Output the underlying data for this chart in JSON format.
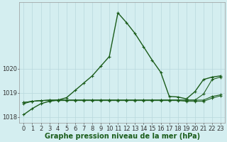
{
  "bg_color": "#d4eef0",
  "grid_color": "#b8d8dc",
  "line_color": "#1a5c1a",
  "marker_color": "#1a5c1a",
  "xlabel": "Graphe pression niveau de la mer (hPa)",
  "xlabel_fontsize": 7,
  "tick_fontsize": 6,
  "ytick_labels": [
    "1018",
    "1019",
    "1020"
  ],
  "ytick_values": [
    1018,
    1019,
    1020
  ],
  "xtick_values": [
    0,
    1,
    2,
    3,
    4,
    5,
    6,
    7,
    8,
    9,
    10,
    11,
    12,
    13,
    14,
    15,
    16,
    17,
    18,
    19,
    20,
    21,
    22,
    23
  ],
  "series": [
    [
      1018.1,
      1018.35,
      1018.55,
      1018.65,
      1018.7,
      1018.8,
      1019.1,
      1019.4,
      1019.7,
      1020.1,
      1020.5,
      1022.3,
      1021.9,
      1021.45,
      1020.9,
      1020.35,
      1019.85,
      1018.85,
      1018.83,
      1018.75,
      1019.05,
      1019.55,
      1019.65,
      1019.7
    ],
    [
      1018.55,
      1018.65,
      1018.68,
      1018.7,
      1018.7,
      1018.7,
      1018.7,
      1018.7,
      1018.7,
      1018.7,
      1018.7,
      1018.7,
      1018.7,
      1018.7,
      1018.7,
      1018.7,
      1018.7,
      1018.7,
      1018.7,
      1018.7,
      1018.7,
      1018.95,
      1019.55,
      1019.65
    ],
    [
      1018.6,
      1018.65,
      1018.68,
      1018.7,
      1018.7,
      1018.7,
      1018.7,
      1018.7,
      1018.7,
      1018.7,
      1018.7,
      1018.7,
      1018.7,
      1018.7,
      1018.7,
      1018.7,
      1018.7,
      1018.7,
      1018.7,
      1018.7,
      1018.7,
      1018.7,
      1018.85,
      1018.92
    ],
    [
      1018.6,
      1018.65,
      1018.68,
      1018.68,
      1018.68,
      1018.68,
      1018.68,
      1018.68,
      1018.68,
      1018.68,
      1018.68,
      1018.68,
      1018.68,
      1018.68,
      1018.68,
      1018.68,
      1018.68,
      1018.68,
      1018.68,
      1018.65,
      1018.65,
      1018.65,
      1018.78,
      1018.88
    ]
  ],
  "ylim": [
    1017.75,
    1022.75
  ],
  "xlim": [
    -0.5,
    23.5
  ],
  "figsize": [
    3.2,
    2.0
  ],
  "dpi": 100
}
